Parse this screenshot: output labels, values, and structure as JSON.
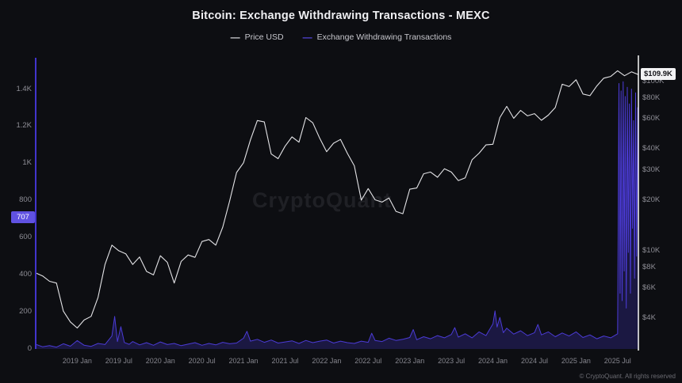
{
  "title": "Bitcoin: Exchange Withdrawing Transactions - MEXC",
  "legend": [
    {
      "label": "Price USD",
      "color": "#d9d9de"
    },
    {
      "label": "Exchange Withdrawing Transactions",
      "color": "#5547e0"
    }
  ],
  "watermark": "CryptoQuant",
  "footer": "© CryptoQuant. All rights reserved",
  "colors": {
    "background": "#0d0e12",
    "price_line": "#e3e3e6",
    "withdraw_line": "#4b3bd6",
    "withdraw_fill": "rgba(72,56,212,0.25)",
    "axis_text": "#8d8d95",
    "badge_purple": "#6052e2",
    "badge_white_bg": "#f2f2f4",
    "badge_white_text": "#141419",
    "cursor_line": "#fafafa",
    "left_axis_line": "#4234cc"
  },
  "chart_data": {
    "type": "line",
    "title": "Bitcoin: Exchange Withdrawing Transactions - MEXC",
    "x_axis": {
      "start": "2018-07",
      "end": "2025-10",
      "unit": "month",
      "ticks": [
        {
          "label": "2019 Jan",
          "month": 6
        },
        {
          "label": "2019 Jul",
          "month": 12
        },
        {
          "label": "2020 Jan",
          "month": 18
        },
        {
          "label": "2020 Jul",
          "month": 24
        },
        {
          "label": "2021 Jan",
          "month": 30
        },
        {
          "label": "2021 Jul",
          "month": 36
        },
        {
          "label": "2022 Jan",
          "month": 42
        },
        {
          "label": "2022 Jul",
          "month": 48
        },
        {
          "label": "2023 Jan",
          "month": 54
        },
        {
          "label": "2023 Jul",
          "month": 60
        },
        {
          "label": "2024 Jan",
          "month": 66
        },
        {
          "label": "2024 Jul",
          "month": 72
        },
        {
          "label": "2025 Jan",
          "month": 78
        },
        {
          "label": "2025 Jul",
          "month": 84
        }
      ]
    },
    "left_axis": {
      "name": "Exchange Withdrawing Transactions",
      "scale": "linear",
      "plot_max": 1560,
      "ticks": [
        {
          "label": "0",
          "value": 0
        },
        {
          "label": "200",
          "value": 200
        },
        {
          "label": "400",
          "value": 400
        },
        {
          "label": "600",
          "value": 600
        },
        {
          "label": "800",
          "value": 800
        },
        {
          "label": "1K",
          "value": 1000
        },
        {
          "label": "1.2K",
          "value": 1200
        },
        {
          "label": "1.4K",
          "value": 1400
        }
      ]
    },
    "right_axis": {
      "name": "Price USD",
      "scale": "log",
      "min": 2630,
      "max": 135200,
      "ticks": [
        {
          "label": "$4K",
          "value": 4000
        },
        {
          "label": "$6K",
          "value": 6000
        },
        {
          "label": "$8K",
          "value": 8000
        },
        {
          "label": "$10K",
          "value": 10000
        },
        {
          "label": "$20K",
          "value": 20000
        },
        {
          "label": "$30K",
          "value": 30000
        },
        {
          "label": "$40K",
          "value": 40000
        },
        {
          "label": "$60K",
          "value": 60000
        },
        {
          "label": "$80K",
          "value": 80000
        },
        {
          "label": "$100K",
          "value": 100000
        }
      ]
    },
    "series": [
      {
        "name": "Price USD",
        "axis": "right",
        "color": "#e3e3e6",
        "unit": "USD",
        "monthly_values": [
          7400,
          7100,
          6600,
          6450,
          4400,
          3800,
          3500,
          3900,
          4100,
          5300,
          8300,
          10800,
          10000,
          9600,
          8300,
          9200,
          7550,
          7200,
          9350,
          8550,
          6450,
          8650,
          9450,
          9150,
          11350,
          11650,
          10800,
          13800,
          19700,
          29000,
          33100,
          45200,
          58800,
          57700,
          37300,
          35000,
          41500,
          47100,
          43800,
          61300,
          57000,
          46200,
          38500,
          43200,
          45500,
          37600,
          31800,
          19900,
          23300,
          20000,
          19400,
          20500,
          17100,
          16550,
          23100,
          23500,
          28500,
          29200,
          27200,
          30500,
          29200,
          26000,
          26950,
          34500,
          37700,
          42250,
          42600,
          61200,
          71300,
          60600,
          67500,
          62700,
          64600,
          59000,
          63300,
          70200,
          96400,
          93400,
          102400,
          84400,
          82500,
          94200,
          104600,
          107200,
          115800,
          108200,
          114000,
          109900
        ]
      },
      {
        "name": "Exchange Withdrawing Transactions",
        "axis": "left",
        "color": "#4b3bd6",
        "points": [
          [
            0,
            25
          ],
          [
            1,
            12
          ],
          [
            2,
            18
          ],
          [
            3,
            10
          ],
          [
            4,
            28
          ],
          [
            5,
            15
          ],
          [
            6,
            45
          ],
          [
            7,
            20
          ],
          [
            8,
            14
          ],
          [
            9,
            30
          ],
          [
            10,
            24
          ],
          [
            11,
            70
          ],
          [
            11.4,
            175
          ],
          [
            11.8,
            40
          ],
          [
            12.3,
            120
          ],
          [
            12.8,
            35
          ],
          [
            13.5,
            25
          ],
          [
            14,
            40
          ],
          [
            15,
            22
          ],
          [
            16,
            34
          ],
          [
            17,
            20
          ],
          [
            18,
            38
          ],
          [
            19,
            24
          ],
          [
            20,
            30
          ],
          [
            21,
            18
          ],
          [
            22,
            26
          ],
          [
            23,
            34
          ],
          [
            24,
            20
          ],
          [
            25,
            30
          ],
          [
            26,
            22
          ],
          [
            27,
            36
          ],
          [
            28,
            28
          ],
          [
            29,
            32
          ],
          [
            30,
            58
          ],
          [
            30.5,
            95
          ],
          [
            31,
            42
          ],
          [
            32,
            52
          ],
          [
            33,
            36
          ],
          [
            34,
            48
          ],
          [
            35,
            32
          ],
          [
            36,
            38
          ],
          [
            37,
            44
          ],
          [
            38,
            30
          ],
          [
            39,
            46
          ],
          [
            40,
            34
          ],
          [
            41,
            42
          ],
          [
            42,
            48
          ],
          [
            43,
            32
          ],
          [
            44,
            42
          ],
          [
            45,
            34
          ],
          [
            46,
            30
          ],
          [
            47,
            42
          ],
          [
            48,
            36
          ],
          [
            48.5,
            85
          ],
          [
            49,
            46
          ],
          [
            50,
            40
          ],
          [
            51,
            58
          ],
          [
            52,
            46
          ],
          [
            53,
            52
          ],
          [
            54,
            62
          ],
          [
            54.5,
            105
          ],
          [
            55,
            50
          ],
          [
            56,
            66
          ],
          [
            57,
            55
          ],
          [
            58,
            72
          ],
          [
            59,
            60
          ],
          [
            60,
            78
          ],
          [
            60.5,
            115
          ],
          [
            61,
            64
          ],
          [
            62,
            82
          ],
          [
            63,
            60
          ],
          [
            64,
            92
          ],
          [
            65,
            72
          ],
          [
            66,
            135
          ],
          [
            66.3,
            205
          ],
          [
            66.6,
            118
          ],
          [
            67,
            170
          ],
          [
            67.5,
            88
          ],
          [
            68,
            112
          ],
          [
            69,
            80
          ],
          [
            70,
            98
          ],
          [
            71,
            72
          ],
          [
            72,
            88
          ],
          [
            72.5,
            132
          ],
          [
            73,
            76
          ],
          [
            74,
            92
          ],
          [
            75,
            66
          ],
          [
            76,
            86
          ],
          [
            77,
            70
          ],
          [
            78,
            92
          ],
          [
            79,
            62
          ],
          [
            80,
            76
          ],
          [
            81,
            55
          ],
          [
            82,
            70
          ],
          [
            83,
            60
          ],
          [
            84,
            82
          ],
          [
            84.2,
            1430
          ],
          [
            84.35,
            300
          ],
          [
            84.5,
            1390
          ],
          [
            84.65,
            260
          ],
          [
            84.8,
            1440
          ],
          [
            84.95,
            420
          ],
          [
            85.1,
            1360
          ],
          [
            85.25,
            220
          ],
          [
            85.4,
            1410
          ],
          [
            85.55,
            520
          ],
          [
            85.7,
            1320
          ],
          [
            85.85,
            300
          ],
          [
            86,
            1400
          ],
          [
            86.15,
            650
          ],
          [
            86.3,
            1230
          ],
          [
            86.45,
            380
          ],
          [
            86.6,
            1380
          ],
          [
            86.75,
            500
          ],
          [
            86.9,
            1300
          ],
          [
            87,
            707
          ]
        ]
      }
    ],
    "annotations": {
      "current_price_label": "$109.9K",
      "current_price_value": 109900,
      "current_withdrawals_label": "707",
      "current_withdrawals_value": 707
    }
  }
}
